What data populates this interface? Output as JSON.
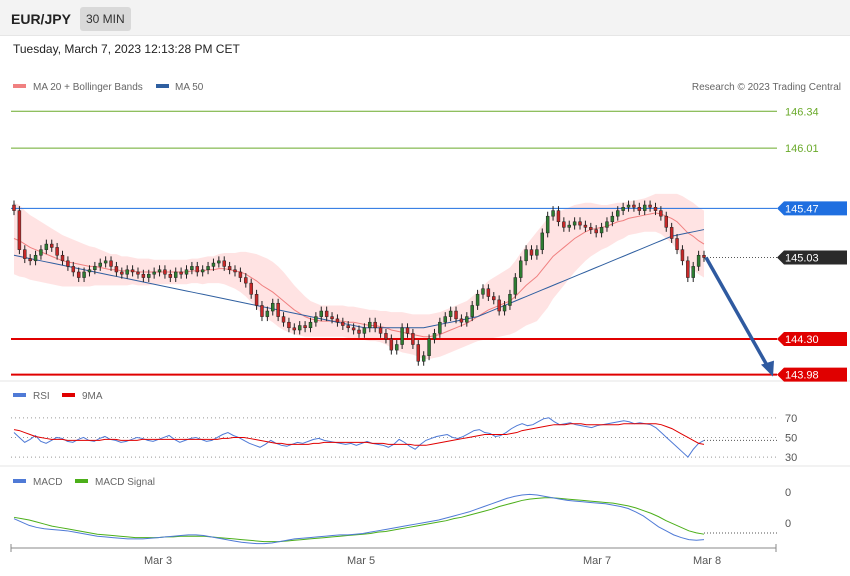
{
  "header": {
    "symbol": "EUR/JPY",
    "timeframe": "30 MIN",
    "datetime": "Tuesday, March 7, 2023 12:13:28 PM CET"
  },
  "chart_data": [
    {
      "type": "line",
      "name": "price",
      "legend": [
        {
          "label": "MA 20 + Bollinger Bands",
          "color": "#f08080"
        },
        {
          "label": "MA 50",
          "color": "#2f5fa0"
        }
      ],
      "copyright": "Research © 2023 Trading Central",
      "ylim": [
        143.95,
        146.45
      ],
      "levels": [
        {
          "value": 146.34,
          "label": "146.34",
          "kind": "target",
          "color": "#6aaa2a"
        },
        {
          "value": 146.01,
          "label": "146.01",
          "kind": "target",
          "color": "#6aaa2a"
        },
        {
          "value": 145.47,
          "label": "145.47",
          "kind": "pivot",
          "color": "#1f6fe0"
        },
        {
          "value": 145.03,
          "label": "145.03",
          "kind": "last",
          "color": "#2a2a2a"
        },
        {
          "value": 144.3,
          "label": "144.30",
          "kind": "support",
          "color": "#e00000"
        },
        {
          "value": 143.98,
          "label": "143.98",
          "kind": "support",
          "color": "#e00000"
        }
      ],
      "x_ticks": [
        "Mar 3",
        "Mar 5",
        "Mar 7",
        "Mar 8"
      ],
      "close_series": [
        145.45,
        145.1,
        145.02,
        145.0,
        145.05,
        145.1,
        145.15,
        145.12,
        145.05,
        145.0,
        144.95,
        144.9,
        144.85,
        144.9,
        144.92,
        144.95,
        144.98,
        145.0,
        144.95,
        144.9,
        144.88,
        144.92,
        144.9,
        144.88,
        144.85,
        144.88,
        144.9,
        144.92,
        144.88,
        144.85,
        144.9,
        144.88,
        144.92,
        144.95,
        144.9,
        144.92,
        144.95,
        144.98,
        145.0,
        144.95,
        144.92,
        144.9,
        144.85,
        144.8,
        144.7,
        144.6,
        144.5,
        144.55,
        144.62,
        144.5,
        144.45,
        144.4,
        144.38,
        144.42,
        144.4,
        144.45,
        144.5,
        144.55,
        144.5,
        144.48,
        144.45,
        144.42,
        144.4,
        144.38,
        144.35,
        144.4,
        144.45,
        144.4,
        144.35,
        144.3,
        144.2,
        144.25,
        144.4,
        144.35,
        144.25,
        144.1,
        144.15,
        144.3,
        144.35,
        144.45,
        144.5,
        144.55,
        144.48,
        144.45,
        144.5,
        144.6,
        144.7,
        144.75,
        144.68,
        144.65,
        144.55,
        144.6,
        144.7,
        144.85,
        145.0,
        145.1,
        145.05,
        145.1,
        145.25,
        145.4,
        145.45,
        145.35,
        145.3,
        145.32,
        145.35,
        145.32,
        145.3,
        145.28,
        145.25,
        145.3,
        145.35,
        145.4,
        145.45,
        145.48,
        145.5,
        145.48,
        145.45,
        145.5,
        145.48,
        145.45,
        145.4,
        145.3,
        145.2,
        145.1,
        145.0,
        144.85,
        144.95,
        145.05,
        145.03
      ],
      "ma20_series": [
        145.2,
        145.18,
        145.15,
        145.12,
        145.1,
        145.08,
        145.06,
        145.04,
        145.02,
        145.0,
        144.99,
        144.98,
        144.97,
        144.96,
        144.95,
        144.95,
        144.94,
        144.93,
        144.92,
        144.92,
        144.91,
        144.91,
        144.91,
        144.9,
        144.9,
        144.9,
        144.9,
        144.9,
        144.9,
        144.9,
        144.9,
        144.9,
        144.9,
        144.91,
        144.91,
        144.91,
        144.92,
        144.92,
        144.93,
        144.93,
        144.92,
        144.91,
        144.9,
        144.88,
        144.85,
        144.82,
        144.78,
        144.75,
        144.72,
        144.68,
        144.64,
        144.6,
        144.56,
        144.53,
        144.5,
        144.48,
        144.47,
        144.46,
        144.46,
        144.46,
        144.46,
        144.46,
        144.45,
        144.45,
        144.44,
        144.43,
        144.42,
        144.42,
        144.41,
        144.4,
        144.38,
        144.37,
        144.36,
        144.35,
        144.34,
        144.33,
        144.32,
        144.32,
        144.33,
        144.34,
        144.36,
        144.38,
        144.4,
        144.42,
        144.44,
        144.47,
        144.5,
        144.53,
        144.56,
        144.58,
        144.6,
        144.62,
        144.64,
        144.68,
        144.73,
        144.78,
        144.82,
        144.86,
        144.92,
        144.98,
        145.04,
        145.08,
        145.12,
        145.16,
        145.2,
        145.23,
        145.26,
        145.28,
        145.29,
        145.3,
        145.31,
        145.33,
        145.35,
        145.36,
        145.38,
        145.39,
        145.4,
        145.41,
        145.42,
        145.43,
        145.42,
        145.4,
        145.38,
        145.35,
        145.3,
        145.25,
        145.22,
        145.18,
        145.15
      ],
      "bb_width": [
        0.32,
        0.32,
        0.3,
        0.29,
        0.28,
        0.27,
        0.26,
        0.25,
        0.24,
        0.23,
        0.22,
        0.21,
        0.2,
        0.19,
        0.18,
        0.17,
        0.16,
        0.15,
        0.14,
        0.14,
        0.13,
        0.13,
        0.12,
        0.12,
        0.12,
        0.12,
        0.11,
        0.11,
        0.11,
        0.11,
        0.11,
        0.11,
        0.11,
        0.11,
        0.11,
        0.12,
        0.12,
        0.12,
        0.13,
        0.14,
        0.15,
        0.16,
        0.18,
        0.2,
        0.22,
        0.24,
        0.26,
        0.27,
        0.27,
        0.27,
        0.26,
        0.24,
        0.22,
        0.2,
        0.18,
        0.16,
        0.15,
        0.14,
        0.14,
        0.14,
        0.14,
        0.14,
        0.14,
        0.14,
        0.14,
        0.14,
        0.14,
        0.14,
        0.14,
        0.15,
        0.16,
        0.17,
        0.18,
        0.18,
        0.18,
        0.19,
        0.2,
        0.2,
        0.2,
        0.2,
        0.2,
        0.2,
        0.2,
        0.2,
        0.2,
        0.21,
        0.22,
        0.24,
        0.26,
        0.27,
        0.28,
        0.29,
        0.3,
        0.32,
        0.34,
        0.36,
        0.38,
        0.4,
        0.4,
        0.4,
        0.38,
        0.36,
        0.34,
        0.32,
        0.3,
        0.28,
        0.26,
        0.24,
        0.22,
        0.2,
        0.19,
        0.18,
        0.17,
        0.16,
        0.15,
        0.15,
        0.15,
        0.15,
        0.16,
        0.17,
        0.18,
        0.2,
        0.22,
        0.25,
        0.28,
        0.3,
        0.3,
        0.3,
        0.3
      ],
      "ma50_series": [
        145.05,
        145.04,
        145.03,
        145.02,
        145.01,
        145.0,
        144.99,
        144.98,
        144.97,
        144.96,
        144.95,
        144.94,
        144.93,
        144.92,
        144.91,
        144.9,
        144.89,
        144.88,
        144.87,
        144.86,
        144.85,
        144.84,
        144.83,
        144.82,
        144.81,
        144.8,
        144.79,
        144.78,
        144.77,
        144.76,
        144.75,
        144.74,
        144.73,
        144.72,
        144.71,
        144.7,
        144.69,
        144.68,
        144.67,
        144.66,
        144.65,
        144.64,
        144.63,
        144.62,
        144.61,
        144.6,
        144.59,
        144.58,
        144.57,
        144.56,
        144.55,
        144.54,
        144.53,
        144.52,
        144.51,
        144.5,
        144.49,
        144.48,
        144.47,
        144.46,
        144.45,
        144.44,
        144.43,
        144.42,
        144.41,
        144.4,
        144.4,
        144.4,
        144.4,
        144.4,
        144.4,
        144.4,
        144.4,
        144.4,
        144.4,
        144.4,
        144.4,
        144.41,
        144.42,
        144.43,
        144.44,
        144.45,
        144.46,
        144.47,
        144.48,
        144.49,
        144.5,
        144.52,
        144.54,
        144.56,
        144.58,
        144.6,
        144.62,
        144.64,
        144.66,
        144.68,
        144.7,
        144.72,
        144.74,
        144.76,
        144.78,
        144.8,
        144.82,
        144.84,
        144.86,
        144.88,
        144.9,
        144.92,
        144.94,
        144.96,
        144.98,
        145.0,
        145.02,
        145.04,
        145.06,
        145.08,
        145.1,
        145.12,
        145.14,
        145.16,
        145.18,
        145.2,
        145.22,
        145.23,
        145.24,
        145.25,
        145.26,
        145.27,
        145.28
      ]
    },
    {
      "type": "line",
      "name": "rsi",
      "legend": [
        {
          "label": "RSI",
          "color": "#4f7ad6"
        },
        {
          "label": "9MA",
          "color": "#e00000"
        }
      ],
      "ylim": [
        25,
        80
      ],
      "y_ticks": [
        "70",
        "50",
        "30"
      ],
      "rsi_series": [
        55,
        50,
        45,
        48,
        52,
        46,
        44,
        47,
        50,
        49,
        46,
        45,
        48,
        50,
        47,
        46,
        49,
        51,
        48,
        47,
        45,
        46,
        48,
        50,
        49,
        47,
        46,
        48,
        50,
        52,
        48,
        45,
        47,
        49,
        50,
        48,
        46,
        47,
        50,
        53,
        55,
        52,
        50,
        47,
        44,
        42,
        40,
        43,
        47,
        44,
        42,
        41,
        43,
        45,
        44,
        46,
        48,
        49,
        47,
        46,
        45,
        44,
        43,
        44,
        42,
        44,
        46,
        44,
        43,
        42,
        40,
        43,
        48,
        45,
        41,
        38,
        43,
        47,
        49,
        51,
        52,
        53,
        50,
        49,
        51,
        54,
        57,
        58,
        55,
        54,
        51,
        52,
        55,
        59,
        62,
        64,
        62,
        63,
        66,
        69,
        70,
        66,
        63,
        64,
        65,
        63,
        62,
        61,
        60,
        62,
        63,
        64,
        65,
        66,
        67,
        66,
        64,
        65,
        64,
        63,
        60,
        55,
        50,
        45,
        40,
        35,
        30,
        38,
        44,
        47
      ],
      "ma9_series": [
        58,
        57,
        55,
        53,
        51,
        50,
        49,
        48,
        48,
        48,
        47,
        47,
        47,
        47,
        47,
        47,
        47,
        48,
        48,
        48,
        47,
        47,
        47,
        47,
        48,
        48,
        48,
        48,
        48,
        48,
        48,
        48,
        48,
        48,
        48,
        48,
        48,
        48,
        48,
        49,
        49,
        50,
        50,
        50,
        49,
        48,
        47,
        46,
        45,
        44,
        44,
        43,
        43,
        43,
        43,
        43,
        44,
        44,
        45,
        45,
        45,
        45,
        45,
        45,
        45,
        45,
        45,
        44,
        44,
        44,
        43,
        43,
        43,
        43,
        43,
        42,
        42,
        42,
        43,
        44,
        45,
        46,
        47,
        48,
        49,
        50,
        51,
        52,
        53,
        53,
        53,
        53,
        53,
        54,
        55,
        57,
        58,
        59,
        60,
        61,
        62,
        63,
        63,
        63,
        64,
        64,
        64,
        63,
        63,
        63,
        63,
        63,
        63,
        63,
        64,
        64,
        64,
        64,
        64,
        64,
        64,
        63,
        61,
        59,
        56,
        53,
        50,
        47,
        44,
        43
      ]
    },
    {
      "type": "line",
      "name": "macd",
      "legend": [
        {
          "label": "MACD",
          "color": "#4f7ad6"
        },
        {
          "label": "MACD Signal",
          "color": "#4caf1a"
        }
      ],
      "y_ticks": [
        "0",
        "0"
      ],
      "macd_series": [
        0.1,
        0.05,
        0.0,
        -0.03,
        -0.05,
        -0.06,
        -0.07,
        -0.08,
        -0.1,
        -0.12,
        -0.14,
        -0.16,
        -0.17,
        -0.18,
        -0.19,
        -0.2,
        -0.2,
        -0.2,
        -0.19,
        -0.18,
        -0.17,
        -0.16,
        -0.15,
        -0.14,
        -0.14,
        -0.15,
        -0.17,
        -0.19,
        -0.21,
        -0.23,
        -0.25,
        -0.26,
        -0.27,
        -0.27,
        -0.26,
        -0.24,
        -0.22,
        -0.2,
        -0.19,
        -0.18,
        -0.17,
        -0.16,
        -0.15,
        -0.14,
        -0.14,
        -0.13,
        -0.12,
        -0.1,
        -0.08,
        -0.06,
        -0.04,
        -0.02,
        0.0,
        0.02,
        0.04,
        0.06,
        0.08,
        0.11,
        0.14,
        0.17,
        0.2,
        0.24,
        0.28,
        0.32,
        0.36,
        0.4,
        0.43,
        0.45,
        0.46,
        0.45,
        0.43,
        0.41,
        0.39,
        0.37,
        0.36,
        0.35,
        0.34,
        0.33,
        0.32,
        0.3,
        0.28,
        0.25,
        0.2,
        0.14,
        0.06,
        -0.02,
        -0.08,
        -0.14,
        -0.18,
        -0.21,
        -0.22,
        -0.21
      ],
      "signal_series": [
        0.12,
        0.1,
        0.08,
        0.05,
        0.02,
        -0.01,
        -0.03,
        -0.05,
        -0.07,
        -0.09,
        -0.11,
        -0.13,
        -0.14,
        -0.15,
        -0.16,
        -0.17,
        -0.18,
        -0.18,
        -0.18,
        -0.18,
        -0.17,
        -0.17,
        -0.16,
        -0.16,
        -0.16,
        -0.16,
        -0.17,
        -0.18,
        -0.19,
        -0.2,
        -0.21,
        -0.22,
        -0.23,
        -0.24,
        -0.24,
        -0.24,
        -0.23,
        -0.22,
        -0.21,
        -0.2,
        -0.19,
        -0.18,
        -0.17,
        -0.16,
        -0.15,
        -0.14,
        -0.13,
        -0.12,
        -0.1,
        -0.09,
        -0.07,
        -0.05,
        -0.03,
        -0.01,
        0.01,
        0.03,
        0.05,
        0.07,
        0.1,
        0.12,
        0.15,
        0.18,
        0.21,
        0.24,
        0.28,
        0.31,
        0.34,
        0.37,
        0.39,
        0.4,
        0.41,
        0.41,
        0.4,
        0.39,
        0.38,
        0.37,
        0.36,
        0.35,
        0.34,
        0.33,
        0.31,
        0.29,
        0.26,
        0.22,
        0.18,
        0.13,
        0.07,
        0.02,
        -0.03,
        -0.08,
        -0.11,
        -0.13
      ]
    }
  ]
}
